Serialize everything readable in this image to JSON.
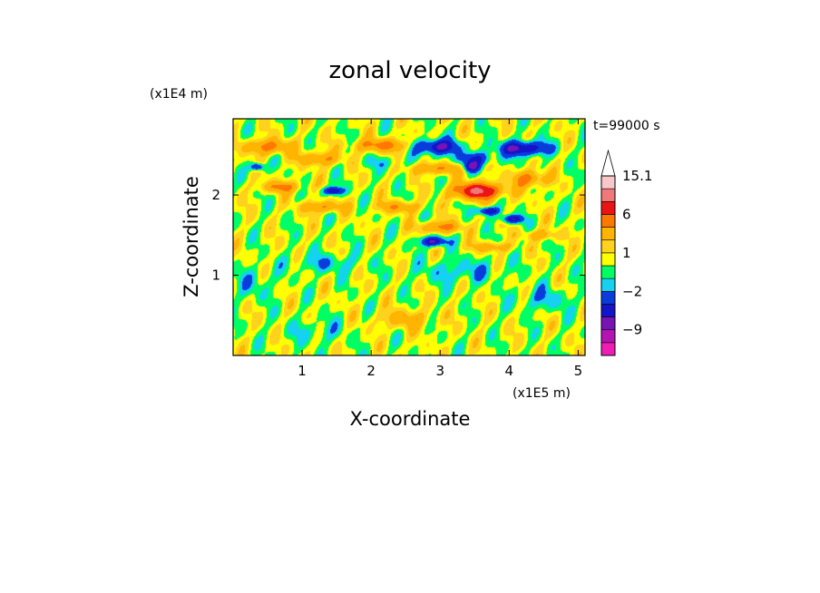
{
  "chart_data": {
    "type": "heatmap",
    "title": "zonal velocity",
    "xlabel": "X-coordinate",
    "ylabel": "Z-coordinate",
    "x_unit_label": "(x1E5 m)",
    "y_unit_label": "(x1E4 m)",
    "time_label": "t=99000 s",
    "xlim": [
      0,
      5.1
    ],
    "ylim": [
      0,
      2.95
    ],
    "x_ticks": [
      "1",
      "2",
      "3",
      "4",
      "5"
    ],
    "y_ticks": [
      "1",
      "2"
    ],
    "colorbar": {
      "levels": [
        -15.1,
        -12,
        -9,
        -6,
        -4,
        -2,
        -1,
        0,
        1,
        2,
        4,
        6,
        9,
        12,
        15.1
      ],
      "colors": [
        "#ee1eb4",
        "#b414b4",
        "#7814b4",
        "#1414c8",
        "#0a3cdc",
        "#14d2f0",
        "#00ff64",
        "#ffff00",
        "#ffd21e",
        "#ffb400",
        "#ff7800",
        "#eb1414",
        "#f07878",
        "#f8c8c8"
      ],
      "tick_labels": [
        {
          "value": 15.1,
          "label": "15.1"
        },
        {
          "value": 6,
          "label": "6"
        },
        {
          "value": 1,
          "label": "1"
        },
        {
          "value": -2,
          "label": "−2"
        },
        {
          "value": -9,
          "label": "−9"
        }
      ],
      "extend": "max"
    },
    "features": [
      {
        "x": 0.5,
        "z": 2.6,
        "v": 4.5,
        "sx": 0.35,
        "sz": 0.09
      },
      {
        "x": 1.25,
        "z": 2.45,
        "v": 4.0,
        "sx": 0.3,
        "sz": 0.08
      },
      {
        "x": 2.15,
        "z": 2.62,
        "v": 4.5,
        "sx": 0.4,
        "sz": 0.08
      },
      {
        "x": 2.95,
        "z": 2.33,
        "v": 4.0,
        "sx": 0.35,
        "sz": 0.07
      },
      {
        "x": 3.55,
        "z": 2.05,
        "v": 9.0,
        "sx": 0.35,
        "sz": 0.1
      },
      {
        "x": 4.3,
        "z": 2.2,
        "v": 4.5,
        "sx": 0.25,
        "sz": 0.1
      },
      {
        "x": 0.7,
        "z": 2.1,
        "v": 4.0,
        "sx": 0.3,
        "sz": 0.07
      },
      {
        "x": 1.3,
        "z": 1.85,
        "v": 4.0,
        "sx": 0.3,
        "sz": 0.07
      },
      {
        "x": 2.4,
        "z": 1.85,
        "v": 3.5,
        "sx": 0.3,
        "sz": 0.07
      },
      {
        "x": 3.0,
        "z": 1.6,
        "v": 4.5,
        "sx": 0.3,
        "sz": 0.07
      },
      {
        "x": 3.75,
        "z": 1.35,
        "v": 3.0,
        "sx": 0.3,
        "sz": 0.06
      },
      {
        "x": 4.45,
        "z": 1.5,
        "v": 3.0,
        "sx": 0.25,
        "sz": 0.06
      },
      {
        "x": 2.5,
        "z": 0.45,
        "v": 2.5,
        "sx": 0.4,
        "sz": 0.12
      },
      {
        "x": 0.35,
        "z": 2.35,
        "v": -6.0,
        "sx": 0.1,
        "sz": 0.05
      },
      {
        "x": 1.45,
        "z": 2.05,
        "v": -6.5,
        "sx": 0.15,
        "sz": 0.05
      },
      {
        "x": 2.95,
        "z": 2.6,
        "v": -7.0,
        "sx": 0.3,
        "sz": 0.09
      },
      {
        "x": 3.5,
        "z": 2.45,
        "v": -4.0,
        "sx": 0.3,
        "sz": 0.08
      },
      {
        "x": 4.2,
        "z": 2.58,
        "v": -7.0,
        "sx": 0.35,
        "sz": 0.09
      },
      {
        "x": 3.45,
        "z": 2.35,
        "v": -6.0,
        "sx": 0.12,
        "sz": 0.06
      },
      {
        "x": 2.9,
        "z": 1.42,
        "v": -7.0,
        "sx": 0.18,
        "sz": 0.06
      },
      {
        "x": 3.7,
        "z": 1.8,
        "v": -6.5,
        "sx": 0.15,
        "sz": 0.05
      },
      {
        "x": 4.05,
        "z": 1.7,
        "v": -6.5,
        "sx": 0.15,
        "sz": 0.05
      },
      {
        "x": 1.35,
        "z": 1.15,
        "v": -2.0,
        "sx": 0.5,
        "sz": 0.12
      },
      {
        "x": 3.3,
        "z": 1.05,
        "v": -2.0,
        "sx": 0.6,
        "sz": 0.15
      },
      {
        "x": 4.5,
        "z": 0.7,
        "v": -2.0,
        "sx": 0.4,
        "sz": 0.15
      },
      {
        "x": 0.3,
        "z": 0.9,
        "v": -1.5,
        "sx": 0.3,
        "sz": 0.2
      },
      {
        "x": 1.2,
        "z": 0.3,
        "v": -1.5,
        "sx": 0.4,
        "sz": 0.15
      },
      {
        "x": 2.2,
        "z": 2.4,
        "v": -1.5,
        "sx": 0.3,
        "sz": 0.08
      }
    ]
  }
}
